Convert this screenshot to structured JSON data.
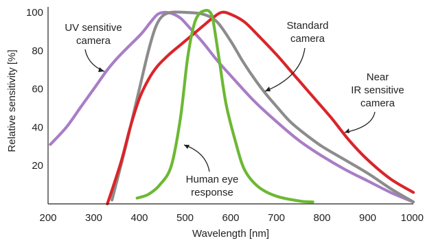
{
  "chart_data": {
    "type": "line",
    "title": "",
    "xlabel": "Wavelength [nm]",
    "ylabel": "Relative sensitivity [%]",
    "xlim": [
      200,
      1000
    ],
    "ylim": [
      0,
      100
    ],
    "x_ticks": [
      200,
      300,
      400,
      500,
      600,
      700,
      800,
      900,
      1000
    ],
    "y_ticks": [
      20,
      40,
      60,
      80,
      100
    ],
    "grid": false,
    "legend": "none",
    "series": [
      {
        "key": "uv",
        "color": "#a97dc6",
        "points": [
          [
            205,
            31
          ],
          [
            240,
            40
          ],
          [
            270,
            50
          ],
          [
            300,
            60
          ],
          [
            330,
            70
          ],
          [
            355,
            77
          ],
          [
            380,
            83
          ],
          [
            405,
            89
          ],
          [
            425,
            95
          ],
          [
            440,
            99
          ],
          [
            455,
            100
          ],
          [
            470,
            99.5
          ],
          [
            490,
            97
          ],
          [
            510,
            92
          ],
          [
            540,
            84
          ],
          [
            570,
            75
          ],
          [
            600,
            67
          ],
          [
            650,
            54
          ],
          [
            700,
            43
          ],
          [
            750,
            33
          ],
          [
            800,
            25
          ],
          [
            850,
            18
          ],
          [
            900,
            12
          ],
          [
            950,
            6
          ],
          [
            1000,
            1
          ]
        ]
      },
      {
        "key": "standard",
        "color": "#8c8c8c",
        "points": [
          [
            340,
            2
          ],
          [
            370,
            30
          ],
          [
            400,
            60
          ],
          [
            420,
            80
          ],
          [
            435,
            92
          ],
          [
            450,
            98
          ],
          [
            470,
            100
          ],
          [
            500,
            100
          ],
          [
            540,
            99
          ],
          [
            570,
            95
          ],
          [
            600,
            85
          ],
          [
            625,
            75
          ],
          [
            650,
            66
          ],
          [
            675,
            58
          ],
          [
            700,
            51
          ],
          [
            730,
            43
          ],
          [
            760,
            37
          ],
          [
            800,
            30
          ],
          [
            850,
            23
          ],
          [
            900,
            16
          ],
          [
            950,
            8
          ],
          [
            1000,
            1
          ]
        ]
      },
      {
        "key": "near_ir",
        "color": "#d9252a",
        "points": [
          [
            330,
            0
          ],
          [
            360,
            22
          ],
          [
            380,
            40
          ],
          [
            400,
            55
          ],
          [
            420,
            65
          ],
          [
            440,
            72
          ],
          [
            465,
            78
          ],
          [
            490,
            83
          ],
          [
            515,
            88
          ],
          [
            540,
            93
          ],
          [
            560,
            97
          ],
          [
            580,
            100
          ],
          [
            600,
            99
          ],
          [
            630,
            95
          ],
          [
            660,
            88
          ],
          [
            700,
            78
          ],
          [
            740,
            67
          ],
          [
            780,
            56
          ],
          [
            820,
            45
          ],
          [
            860,
            33
          ],
          [
            900,
            23
          ],
          [
            950,
            13
          ],
          [
            1000,
            6
          ]
        ]
      },
      {
        "key": "human_eye",
        "color": "#6cb833",
        "points": [
          [
            395,
            3
          ],
          [
            420,
            5
          ],
          [
            445,
            10
          ],
          [
            470,
            20
          ],
          [
            490,
            45
          ],
          [
            505,
            75
          ],
          [
            518,
            92
          ],
          [
            530,
            99
          ],
          [
            545,
            101
          ],
          [
            555,
            100
          ],
          [
            562,
            95
          ],
          [
            575,
            75
          ],
          [
            590,
            52
          ],
          [
            610,
            33
          ],
          [
            630,
            18
          ],
          [
            660,
            9
          ],
          [
            700,
            4
          ],
          [
            750,
            1.5
          ],
          [
            780,
            1
          ]
        ]
      }
    ],
    "annotations": [
      {
        "lines": [
          "UV sensitive",
          "camera"
        ]
      },
      {
        "lines": [
          "Standard",
          "camera"
        ]
      },
      {
        "lines": [
          "Near",
          "IR sensitive",
          "camera"
        ]
      },
      {
        "lines": [
          "Human eye",
          "response"
        ]
      }
    ]
  }
}
